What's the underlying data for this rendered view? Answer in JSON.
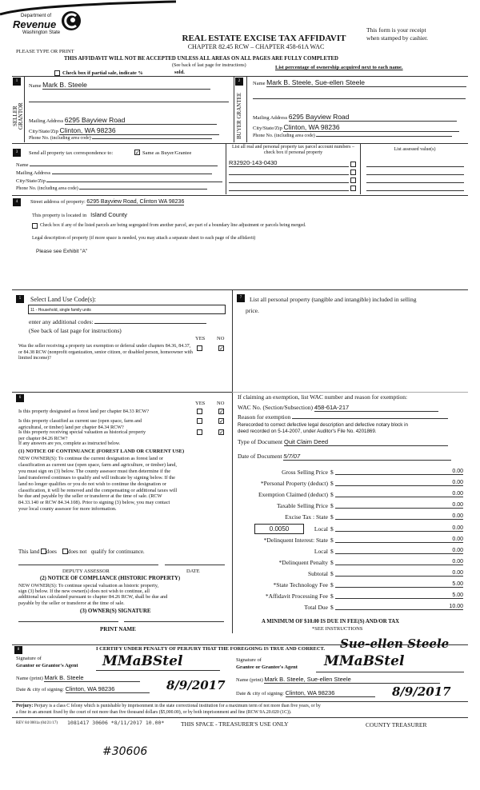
{
  "header": {
    "logo_top": "Department of",
    "logo_main": "Revenue",
    "logo_sub": "Washington State",
    "title": "REAL ESTATE EXCISE TAX AFFIDAVIT",
    "chapter": "CHAPTER 82.45 RCW – CHAPTER 458-61A WAC",
    "please": "PLEASE TYPE OR PRINT",
    "not_accepted": "THIS AFFIDAVIT WILL NOT BE ACCEPTED UNLESS ALL AREAS ON ALL PAGES ARE FULLY COMPLETED",
    "receipt1": "This form is your receipt",
    "receipt2": "when stamped by cashier.",
    "see_back": "(See back of last page for instructions)",
    "partial": "Check box if partial sale, indicate %",
    "sold": "sold.",
    "list_pct": "List percentage of ownership acquired next to each name."
  },
  "seller": {
    "num": "1",
    "side": "SELLER GRANTOR",
    "name_label": "Name",
    "name": "Mark B. Steele",
    "addr_label": "Mailing Address",
    "addr": "6295 Bayview Road",
    "city_label": "City/State/Zip",
    "city": "Clinton, WA 98236",
    "phone_label": "Phone No. (including area code)"
  },
  "buyer": {
    "num": "2",
    "side": "BUYER GRANTEE",
    "name_label": "Name",
    "name": "Mark B. Steele, Sue-ellen Steele",
    "addr_label": "Mailing Address",
    "addr": "6295 Bayview Road",
    "city_label": "City/State/Zip",
    "city": "Clinton, WA 98236",
    "phone_label": "Phone No. (including area code)"
  },
  "s3": {
    "num": "3",
    "send": "Send all property tax correspondence to:",
    "same": "Same as Buyer/Grantee",
    "same_checked": true,
    "name": "Name",
    "addr": "Mailing Address",
    "city": "City/State/Zip",
    "phone": "Phone No. (including area code)",
    "parcel_hdr": "List all real and personal property tax parcel account numbers – check box if personal property",
    "assessed_hdr": "List assessed value(s)",
    "parcels": [
      "R32920-143-0430",
      "",
      "",
      ""
    ]
  },
  "s4": {
    "num": "4",
    "street_label": "Street address of property:",
    "street": "6295 Bayview Road, Clinton WA 98236",
    "located_label": "This property is located in",
    "county": "Island County",
    "segregated": "Check box if any of the listed parcels are being segregated from another parcel, are part of a boundary line adjustment or parcels being merged.",
    "legal_label": "Legal description of property (if more space is needed, you may attach a separate sheet to each page of the affidavit)",
    "legal": "Please see Exhibit \"A\""
  },
  "s5": {
    "num": "5",
    "select": "Select Land Use Code(s):",
    "code": "11 - Household, single family units",
    "additional": "enter any additional codes:",
    "see_back": "(See back of last page for instructions)",
    "yes": "YES",
    "no": "NO",
    "q": "Was the seller receiving a property tax exemption or deferral under chapters 84.36, 84.37, or 84.38 RCW (nonprofit organization, senior citizen, or disabled person, homeowner with limited income)?",
    "answer": "NO"
  },
  "s6": {
    "num": "6",
    "yes": "YES",
    "no": "NO",
    "questions": [
      {
        "q1": "Is this property designated as forest land per chapter 84.33 RCW?",
        "q2": "",
        "answer": "NO"
      },
      {
        "q1": "Is this property classified as current use (open space, farm and",
        "q2": "agricultural, or timber) land per chapter 84.34 RCW?",
        "answer": "NO"
      },
      {
        "q1": "Is this property receiving special valuation as historical property",
        "q2": "per chapter 84.26 RCW?",
        "answer": "NO"
      }
    ],
    "if_yes": "If any answers are yes, complete as instructed below.",
    "n1_title": "(1) NOTICE OF CONTINUANCE  (FOREST LAND OR CURRENT USE)",
    "n1_text": [
      "NEW OWNER(S): To continue the current designation as forest land or",
      "classification as current use (open space, farm and agriculture, or timber) land,",
      "you must sign on (3) below. The county assessor must then determine if the",
      "land transferred continues to qualify and will indicate by signing below. If the",
      "land no longer qualifies or you do not wish to continue the designation or",
      "classification, it will be removed and the compensating or additional taxes will",
      "be due and payable by the seller or transferor at the time of sale. (RCW",
      "84.33.140 or RCW 84.34.108). Prior to signing (3) below, you may contact",
      "your local county assessor for more information."
    ],
    "this_land": "This land",
    "does": "does",
    "does_not": "does not",
    "qualify": "qualify for continuance.",
    "deputy": "DEPUTY ASSESSOR",
    "date": "DATE",
    "n2_title": "(2) NOTICE OF COMPLIANCE (HISTORIC PROPERTY)",
    "n2_text": [
      "NEW OWNER(S): To continue special valuation as historic property,",
      "sign (3) below. If the new owner(s) does not wish to continue, all",
      "additional tax calculated pursuant to chapter 84.26 RCW, shall be due and",
      "payable by the seller or transferor at the time of sale."
    ],
    "n3_title": "(3)  OWNER(S) SIGNATURE",
    "print_name": "PRINT NAME"
  },
  "s7": {
    "num": "7",
    "list": "List all  personal property (tangible and intangible) included in selling",
    "price": "price.",
    "claim": "If claiming an exemption, list WAC number and reason for exemption:",
    "wac_label": "WAC No. (Section/Subsection)",
    "wac": "458-61A-217",
    "reason_label": "Reason for exemption",
    "reason": [
      "Rerecorded to correct defective legal description and defective notary block in",
      "deed recorded on 5-14-2007, under Auditor's File No. 4201869."
    ],
    "type_label": "Type of Document",
    "type": "Quit Claim Deed",
    "date_label": "Date of Document",
    "date": "5/7/07",
    "rate": "0.0050",
    "fees": [
      {
        "label": "Gross Selling Price",
        "value": "0.00"
      },
      {
        "label": "*Personal Property (deduct)",
        "value": "0.00"
      },
      {
        "label": "Exemption Claimed (deduct)",
        "value": "0.00"
      },
      {
        "label": "Taxable Selling Price",
        "value": "0.00"
      },
      {
        "label": "Excise Tax : State",
        "value": "0.00"
      },
      {
        "label": "Local",
        "value": "0.00"
      },
      {
        "label": "*Delinquent Interest: State",
        "value": "0.00"
      },
      {
        "label": "Local",
        "value": "0.00"
      },
      {
        "label": "*Delinquent Penalty",
        "value": "0.00"
      },
      {
        "label": "Subtotal",
        "value": "0.00"
      },
      {
        "label": "*State Technology Fee",
        "value": "5.00"
      },
      {
        "label": "*Affidavit Processing Fee",
        "value": "5.00"
      },
      {
        "label": "Total Due",
        "value": "10.00"
      }
    ],
    "dollar": "$",
    "minimum": "A MINIMUM OF $10.00 IS DUE IN FEE(S) AND/OR TAX",
    "see_instr": "*SEE INSTRUCTIONS"
  },
  "s8": {
    "num": "8",
    "certify": "I CERTIFY UNDER PENALTY OF PERJURY THAT THE FOREGOING IS TRUE AND CORRECT.",
    "sig_of": "Signature of",
    "grantor_agent": "Grantor or Grantor's Agent",
    "grantee_agent": "Grantee or Grantee's Agent",
    "grantor_sig": "MMaBStel",
    "grantee_sig1": "Sue-ellen Steele",
    "grantee_sig2": "MMaBStel",
    "name_label": "Name (print)",
    "grantor_name": "Mark B. Steele",
    "grantee_name": "Mark B. Steele, Sue-ellen Steele",
    "date_label": "Date & city of signing:",
    "grantor_city": "Clinton, WA 98236",
    "grantee_city": "Clinton, WA 98236",
    "grantor_date": "8/9/2017",
    "grantee_date": "8/9/2017"
  },
  "footer": {
    "perjury_b": "Perjury:",
    "perjury": "Perjury is a class C felony which is punishable by imprisonment in the state correctional institution for a maximum term of not more than five years, or by",
    "perjury2": "a fine in an amount fixed by the court of not more than five thousand dollars ($5,000.00), or by both imprisonment and fine (RCW 9A.20.020 (1C)).",
    "rev": "REV 84 0001a (04/21/17)",
    "stamp": "1081417 30606 *8/11/2017 10.00*",
    "treasurer_use": "THIS SPACE - TREASURER'S USE ONLY",
    "county_treasurer": "COUNTY TREASURER",
    "handwritten": "#30606"
  }
}
